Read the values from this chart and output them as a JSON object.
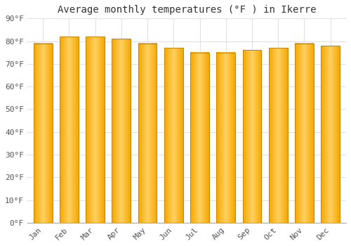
{
  "title": "Average monthly temperatures (°F ) in Ikerre",
  "months": [
    "Jan",
    "Feb",
    "Mar",
    "Apr",
    "May",
    "Jun",
    "Jul",
    "Aug",
    "Sep",
    "Oct",
    "Nov",
    "Dec"
  ],
  "values": [
    79,
    82,
    82,
    81,
    79,
    77,
    75,
    75,
    76,
    77,
    79,
    78
  ],
  "ylim": [
    0,
    90
  ],
  "yticks": [
    0,
    10,
    20,
    30,
    40,
    50,
    60,
    70,
    80,
    90
  ],
  "ytick_labels": [
    "0°F",
    "10°F",
    "20°F",
    "30°F",
    "40°F",
    "50°F",
    "60°F",
    "70°F",
    "80°F",
    "90°F"
  ],
  "bar_color_center": "#FFD060",
  "bar_color_edge": "#F5A800",
  "bar_edge_color": "#CC8800",
  "background_color": "#FFFFFF",
  "grid_color": "#E0E0E0",
  "title_fontsize": 10,
  "tick_fontsize": 8,
  "title_font": "monospace",
  "tick_font": "monospace"
}
